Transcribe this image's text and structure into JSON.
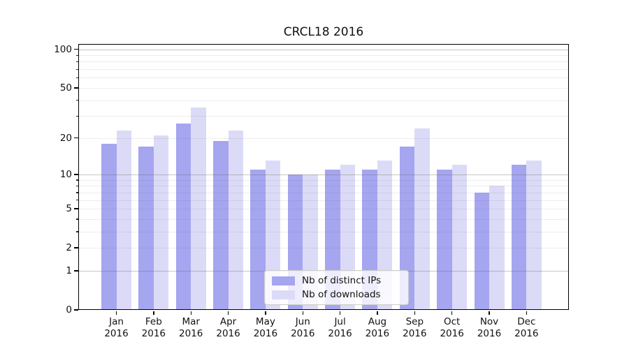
{
  "chart_data": {
    "type": "bar",
    "title": "CRCL18 2016",
    "categories": [
      "Jan",
      "Feb",
      "Mar",
      "Apr",
      "May",
      "Jun",
      "Jul",
      "Aug",
      "Sep",
      "Oct",
      "Nov",
      "Dec"
    ],
    "x_tick_year": "2016",
    "series": [
      {
        "name": "Nb of distinct IPs",
        "color": "#a5a5f0",
        "values": [
          18,
          17,
          26,
          19,
          11,
          10,
          11,
          11,
          17,
          11,
          7,
          12
        ]
      },
      {
        "name": "Nb of downloads",
        "color": "#dbdbf8",
        "values": [
          23,
          21,
          35,
          23,
          13,
          10,
          12,
          13,
          24,
          12,
          8,
          13
        ]
      }
    ],
    "xlabel": "",
    "ylabel": "",
    "yscale": "log1p",
    "ylim": [
      0,
      110
    ],
    "yticks": [
      100,
      50,
      20,
      10,
      5,
      2,
      1,
      0
    ],
    "minor_yticks": [
      3,
      4,
      6,
      7,
      8,
      9,
      30,
      40,
      60,
      70,
      80,
      90
    ],
    "gridlines": {
      "major": [
        1,
        10,
        100
      ],
      "minor": [
        2,
        3,
        4,
        5,
        6,
        7,
        8,
        9,
        20,
        30,
        40,
        50,
        60,
        70,
        80,
        90
      ],
      "drawn_above_bars": true
    },
    "legend": {
      "position": "lower center",
      "frame": true
    }
  },
  "colors": {
    "background": "#ffffff",
    "grid_major_on_white": "#c9c9c9",
    "grid_minor_on_white": "#ececec",
    "spine": "#000000",
    "text": "#111111",
    "legend_border": "#cccccc",
    "legend_background": "rgba(255,255,255,0.8)"
  }
}
